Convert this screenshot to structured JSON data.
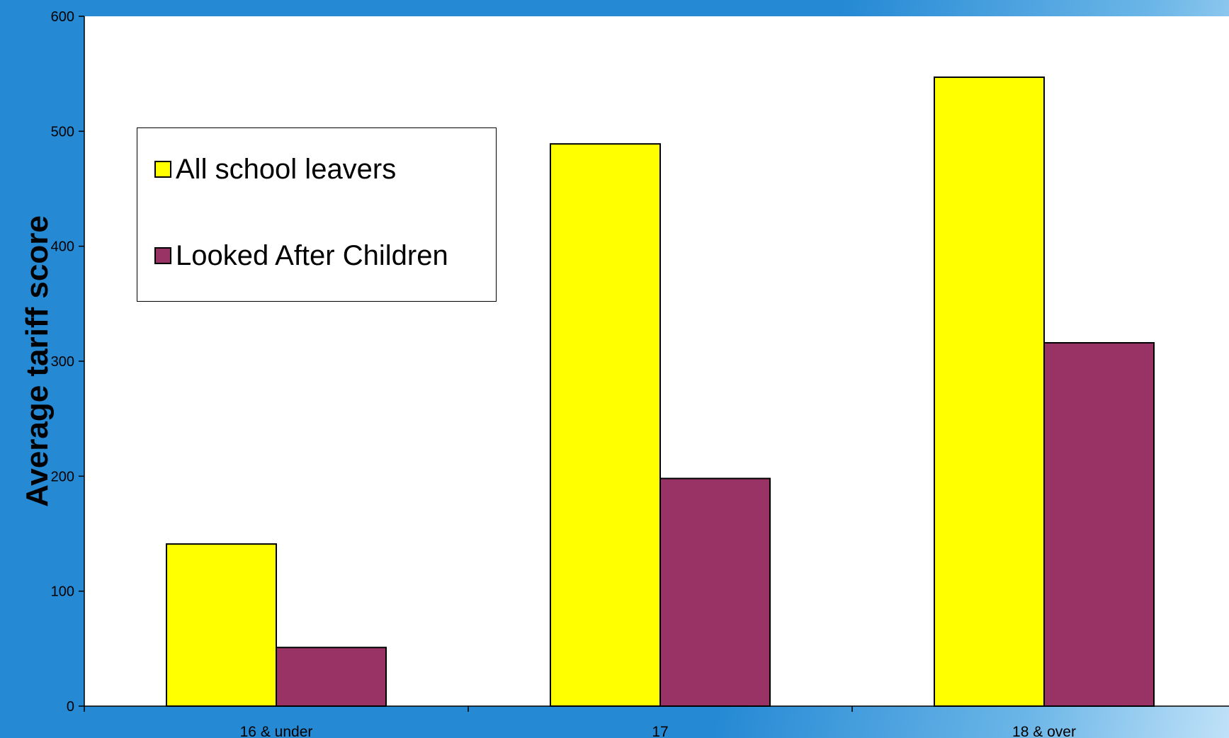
{
  "colors": {
    "background": "#2589d4",
    "plot_background": "#ffffff",
    "series_all": "#ffff00",
    "series_lac": "#993366"
  },
  "chart_data": {
    "type": "bar",
    "categories": [
      "16 & under",
      "17",
      "18 & over"
    ],
    "series": [
      {
        "name": "All school leavers",
        "values": [
          141,
          489,
          547
        ],
        "color": "#ffff00"
      },
      {
        "name": "Looked After Children",
        "values": [
          51,
          198,
          316
        ],
        "color": "#993366"
      }
    ],
    "xlabel": "",
    "ylabel": "Average tariff score",
    "ylim": [
      0,
      600
    ],
    "yticks": [
      0,
      100,
      200,
      300,
      400,
      500,
      600
    ],
    "grid": false,
    "legend": "top-left"
  }
}
